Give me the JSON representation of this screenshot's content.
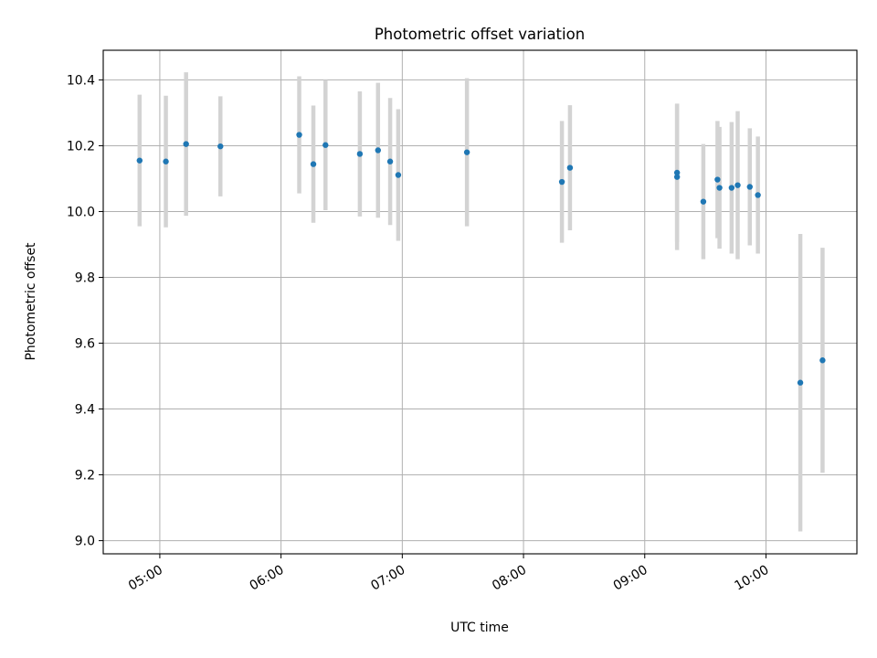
{
  "chart_data": {
    "type": "scatter",
    "title": "Photometric offset variation",
    "xlabel": "UTC time",
    "ylabel": "Photometric offset",
    "xlim": [
      "04:32",
      "10:45"
    ],
    "ylim": [
      8.96,
      10.49
    ],
    "grid": true,
    "x_ticks": [
      "05:00",
      "06:00",
      "07:00",
      "08:00",
      "09:00",
      "10:00"
    ],
    "y_ticks": [
      "9.0",
      "9.2",
      "9.4",
      "9.6",
      "9.8",
      "10.0",
      "10.2",
      "10.4"
    ],
    "point_color": "#1f77b4",
    "errorbar_color": "#d3d3d3",
    "points": [
      {
        "x": "04:50",
        "y": 10.155,
        "err": 0.2
      },
      {
        "x": "05:03",
        "y": 10.152,
        "err": 0.2
      },
      {
        "x": "05:13",
        "y": 10.205,
        "err": 0.218
      },
      {
        "x": "05:30",
        "y": 10.198,
        "err": 0.152
      },
      {
        "x": "06:09",
        "y": 10.233,
        "err": 0.178
      },
      {
        "x": "06:16",
        "y": 10.144,
        "err": 0.178
      },
      {
        "x": "06:22",
        "y": 10.202,
        "err": 0.198
      },
      {
        "x": "06:39",
        "y": 10.175,
        "err": 0.19
      },
      {
        "x": "06:48",
        "y": 10.186,
        "err": 0.205
      },
      {
        "x": "06:54",
        "y": 10.152,
        "err": 0.193
      },
      {
        "x": "06:58",
        "y": 10.111,
        "err": 0.2
      },
      {
        "x": "07:32",
        "y": 10.18,
        "err": 0.225
      },
      {
        "x": "08:19",
        "y": 10.09,
        "err": 0.185
      },
      {
        "x": "08:23",
        "y": 10.133,
        "err": 0.19
      },
      {
        "x": "09:16",
        "y": 10.105,
        "err": 0.222
      },
      {
        "x": "09:16",
        "y": 10.118,
        "err": 0.21
      },
      {
        "x": "09:29",
        "y": 10.03,
        "err": 0.175
      },
      {
        "x": "09:36",
        "y": 10.097,
        "err": 0.178
      },
      {
        "x": "09:37",
        "y": 10.072,
        "err": 0.185
      },
      {
        "x": "09:43",
        "y": 10.072,
        "err": 0.2
      },
      {
        "x": "09:46",
        "y": 10.08,
        "err": 0.225
      },
      {
        "x": "09:52",
        "y": 10.075,
        "err": 0.178
      },
      {
        "x": "09:56",
        "y": 10.05,
        "err": 0.178
      },
      {
        "x": "10:17",
        "y": 9.48,
        "err": 0.452
      },
      {
        "x": "10:28",
        "y": 9.548,
        "err": 0.342
      }
    ]
  }
}
